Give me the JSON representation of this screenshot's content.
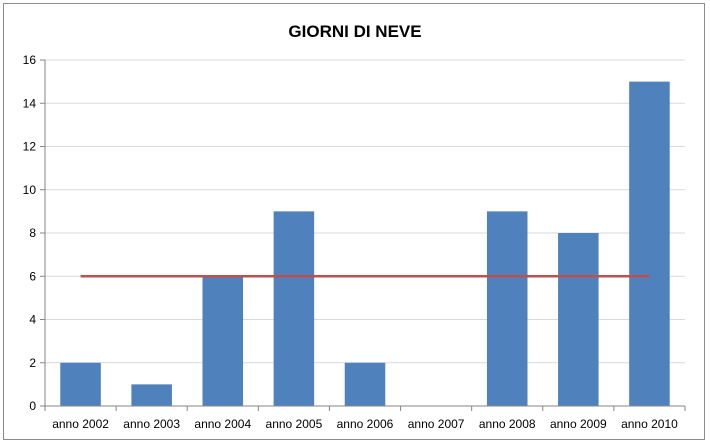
{
  "chart_data": {
    "type": "bar",
    "title": "GIORNI DI NEVE",
    "xlabel": "",
    "ylabel": "",
    "categories": [
      "anno 2002",
      "anno 2003",
      "anno 2004",
      "anno 2005",
      "anno 2006",
      "anno 2007",
      "anno 2008",
      "anno 2009",
      "anno 2010"
    ],
    "series": [
      {
        "type": "bar",
        "values": [
          2,
          1,
          6,
          9,
          2,
          0,
          9,
          8,
          15
        ]
      },
      {
        "type": "line",
        "values": [
          6,
          6,
          6,
          6,
          6,
          6,
          6,
          6,
          6
        ]
      }
    ],
    "ylim": [
      0,
      16
    ],
    "yticks": [
      0,
      2,
      4,
      6,
      8,
      10,
      12,
      14,
      16
    ],
    "grid": true,
    "legend": "none",
    "colors": {
      "bar": "#4f81bd",
      "line": "#c0504d",
      "grid": "#d9d9d9",
      "axis": "#868686"
    }
  }
}
